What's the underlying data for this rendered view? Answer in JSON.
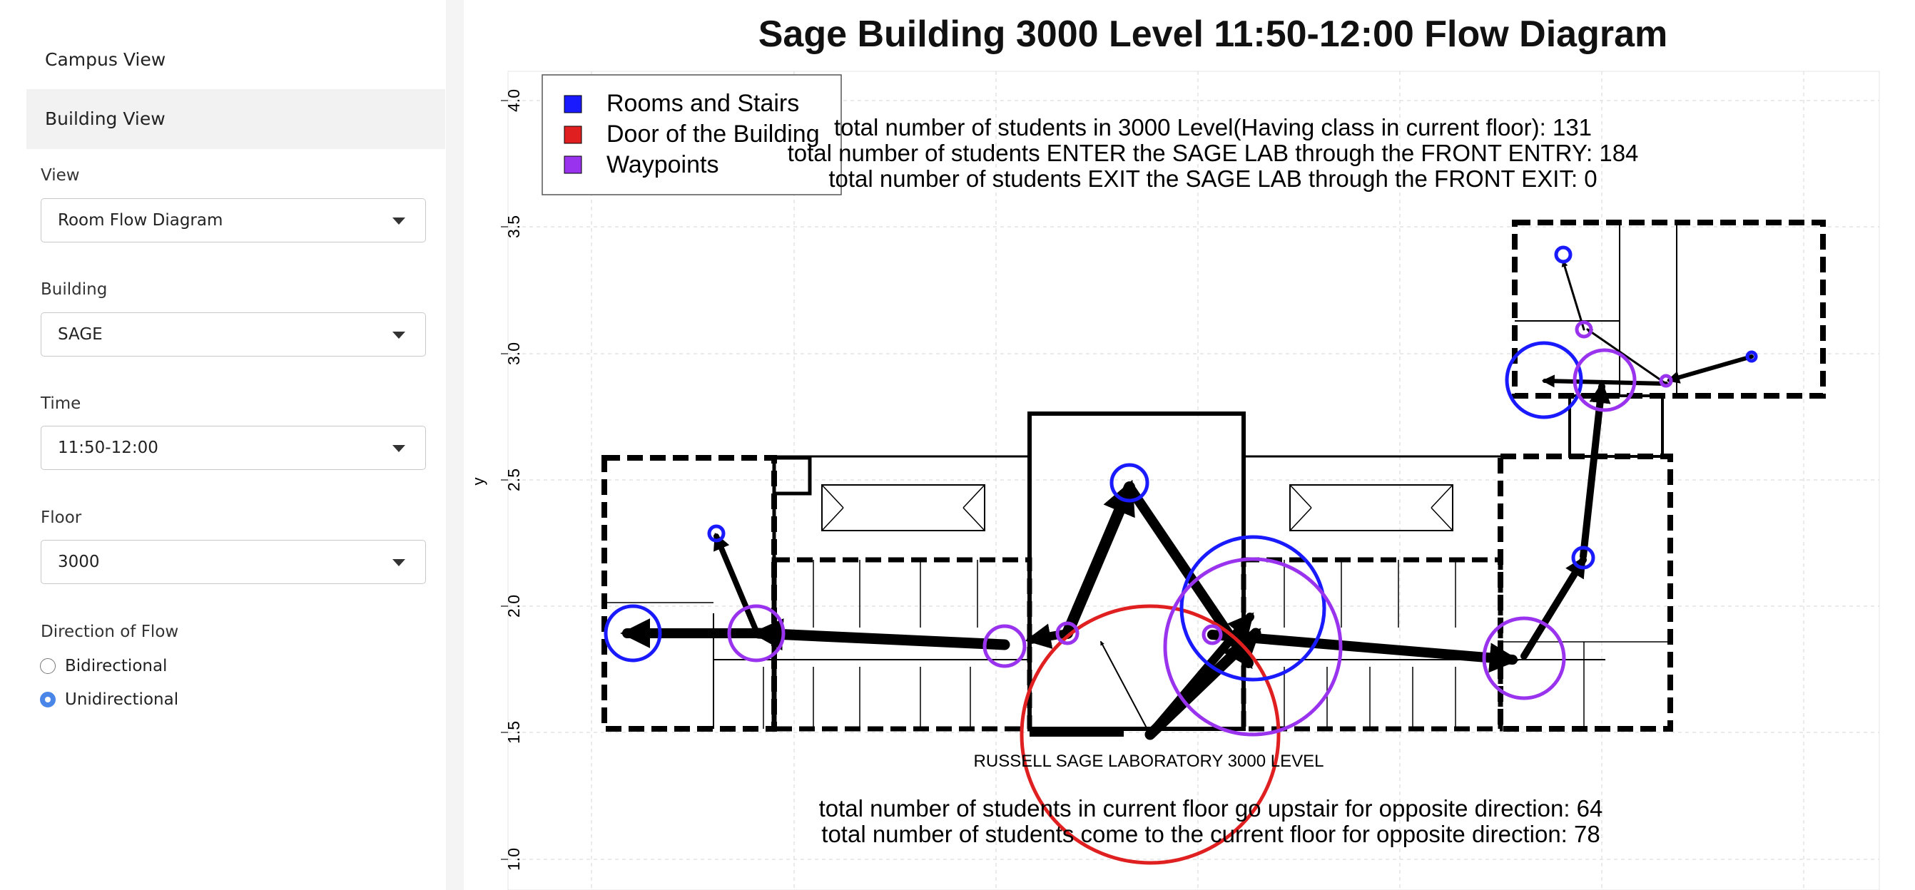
{
  "sidebar": {
    "nav": [
      {
        "label": "Campus View",
        "active": false
      },
      {
        "label": "Building View",
        "active": true
      }
    ],
    "view": {
      "label": "View",
      "value": "Room Flow Diagram"
    },
    "building": {
      "label": "Building",
      "value": "SAGE"
    },
    "time": {
      "label": "Time",
      "value": "11:50-12:00"
    },
    "floor": {
      "label": "Floor",
      "value": "3000"
    },
    "direction": {
      "label": "Direction of Flow",
      "options": [
        {
          "label": "Bidirectional",
          "selected": false
        },
        {
          "label": "Unidirectional",
          "selected": true
        }
      ]
    }
  },
  "plot": {
    "title": "Sage Building 3000 Level 11:50-12:00 Flow Diagram",
    "ylabel": "y",
    "y_ticks": [
      "1.0",
      "1.5",
      "2.0",
      "2.5",
      "3.0",
      "3.5",
      "4.0"
    ],
    "legend": [
      {
        "label": "Rooms and Stairs",
        "color": "#1a1aff"
      },
      {
        "label": "Door of the Building",
        "color": "#e02020"
      },
      {
        "label": "Waypoints",
        "color": "#9933ee"
      }
    ],
    "stats_top": [
      "total number of students in 3000 Level(Having class in current floor): 131",
      "total number of students ENTER the SAGE LAB through the FRONT ENTRY: 184",
      "total number of students EXIT the SAGE LAB through the FRONT EXIT: 0"
    ],
    "floor_label": "RUSSELL SAGE LABORATORY 3000 LEVEL",
    "stats_bottom": [
      "total number of students in current floor go upstair for opposite direction: 64",
      "total number of students come to the current floor for opposite direction: 78"
    ]
  }
}
